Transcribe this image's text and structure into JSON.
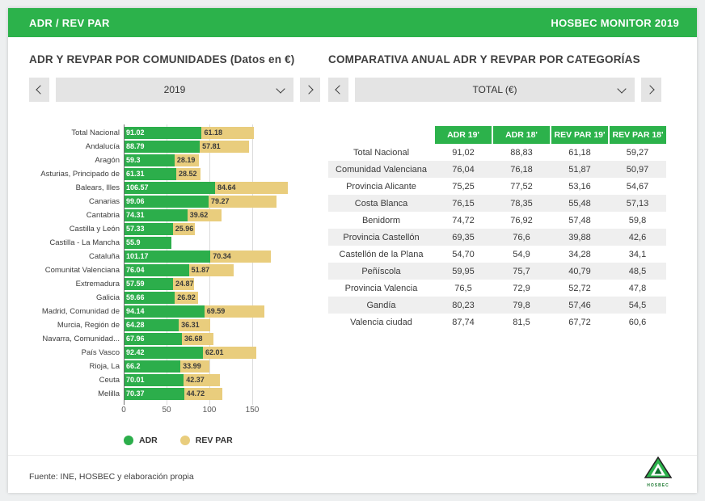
{
  "header": {
    "title": "ADR / REV PAR",
    "badge": "HOSBEC MONITOR 2019"
  },
  "left_panel": {
    "title": "ADR Y REVPAR POR COMUNIDADES (Datos en €)",
    "selector": {
      "value": "2019"
    }
  },
  "right_panel": {
    "title": "COMPARATIVA ANUAL ADR Y REVPAR POR CATEGORÍAS",
    "selector": {
      "value": "TOTAL (€)"
    },
    "table": {
      "headers": [
        "ADR 19'",
        "ADR 18'",
        "REV PAR 19'",
        "REV PAR 18'"
      ],
      "rows": [
        {
          "label": "Total Nacional",
          "values": [
            "91,02",
            "88,83",
            "61,18",
            "59,27"
          ]
        },
        {
          "label": "Comunidad Valenciana",
          "values": [
            "76,04",
            "76,18",
            "51,87",
            "50,97"
          ]
        },
        {
          "label": "Provincia Alicante",
          "values": [
            "75,25",
            "77,52",
            "53,16",
            "54,67"
          ]
        },
        {
          "label": "Costa Blanca",
          "values": [
            "76,15",
            "78,35",
            "55,48",
            "57,13"
          ]
        },
        {
          "label": "Benidorm",
          "values": [
            "74,72",
            "76,92",
            "57,48",
            "59,8"
          ]
        },
        {
          "label": "Provincia Castellón",
          "values": [
            "69,35",
            "76,6",
            "39,88",
            "42,6"
          ]
        },
        {
          "label": "Castellón de la Plana",
          "values": [
            "54,70",
            "54,9",
            "34,28",
            "34,1"
          ]
        },
        {
          "label": "Peñíscola",
          "values": [
            "59,95",
            "75,7",
            "40,79",
            "48,5"
          ]
        },
        {
          "label": "Provincia Valencia",
          "values": [
            "76,5",
            "72,9",
            "52,72",
            "47,8"
          ]
        },
        {
          "label": "Gandía",
          "values": [
            "80,23",
            "79,8",
            "57,46",
            "54,5"
          ]
        },
        {
          "label": "Valencia ciudad",
          "values": [
            "87,74",
            "81,5",
            "67,72",
            "60,6"
          ]
        }
      ]
    }
  },
  "chart_data": {
    "type": "bar",
    "orientation": "horizontal-stacked",
    "title": "ADR Y REVPAR POR COMUNIDADES (Datos en €)",
    "categories": [
      "Total Nacional",
      "Andalucía",
      "Aragón",
      "Asturias, Principado de",
      "Balears, Illes",
      "Canarias",
      "Cantabria",
      "Castilla y León",
      "Castilla - La Mancha",
      "Cataluña",
      "Comunitat Valenciana",
      "Extremadura",
      "Galicia",
      "Madrid, Comunidad de",
      "Murcia, Región de",
      "Navarra, Comunidad...",
      "País Vasco",
      "Rioja, La",
      "Ceuta",
      "Melilla"
    ],
    "series": [
      {
        "name": "ADR",
        "color": "#2cae4b",
        "values": [
          91.02,
          88.79,
          59.3,
          61.31,
          106.57,
          99.06,
          74.31,
          57.33,
          55.9,
          101.17,
          76.04,
          57.59,
          59.66,
          94.14,
          64.28,
          67.96,
          92.42,
          66.2,
          70.01,
          70.37
        ]
      },
      {
        "name": "REV PAR",
        "color": "#e9cd7d",
        "values": [
          61.18,
          57.81,
          28.19,
          28.52,
          84.64,
          79.27,
          39.62,
          25.96,
          null,
          70.34,
          51.87,
          24.87,
          26.92,
          69.59,
          36.31,
          36.68,
          62.01,
          33.99,
          42.37,
          44.72
        ]
      }
    ],
    "x_ticks": [
      0,
      50,
      100,
      150
    ],
    "xlim": [
      0,
      200
    ]
  },
  "legend": [
    {
      "label": "ADR",
      "color": "#2cae4b"
    },
    {
      "label": "REV PAR",
      "color": "#e9cd7d"
    }
  ],
  "footer": {
    "source": "Fuente: INE, HOSBEC y elaboración propia"
  },
  "logo": {
    "label": "HOSBEC"
  },
  "colors": {
    "accent_green": "#2cb24b",
    "bar_green": "#2cae4b",
    "bar_yellow": "#e9cd7d",
    "row_alt": "#efefef"
  }
}
